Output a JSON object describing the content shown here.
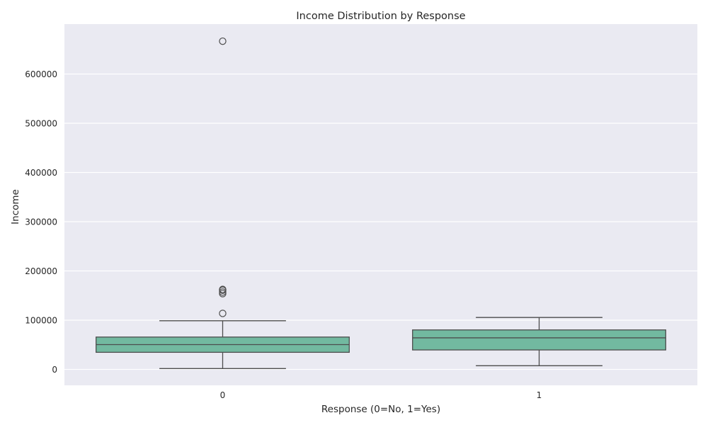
{
  "chart_data": {
    "type": "box",
    "title": "Income Distribution by Response",
    "xlabel": "Response (0=No, 1=Yes)",
    "ylabel": "Income",
    "categories": [
      "0",
      "1"
    ],
    "ylim": [
      -30000,
      700000
    ],
    "yticks": [
      0,
      100000,
      200000,
      300000,
      400000,
      500000,
      600000
    ],
    "ytick_labels": [
      "0",
      "100000",
      "200000",
      "300000",
      "400000",
      "500000",
      "600000"
    ],
    "grid": true,
    "colors": {
      "background": "#eaeaf2",
      "box": "#72b9a0",
      "line": "#4d4d4d",
      "grid": "#ffffff"
    },
    "boxes": [
      {
        "category": "0",
        "whislo": 1730,
        "q1": 34700,
        "median": 50400,
        "q3": 65700,
        "whishi": 98800,
        "fliers": [
          113700,
          153900,
          157100,
          160800,
          162400,
          666700
        ]
      },
      {
        "category": "1",
        "whislo": 7500,
        "q1": 39500,
        "median": 64100,
        "q3": 80200,
        "whishi": 105500,
        "fliers": []
      }
    ]
  }
}
